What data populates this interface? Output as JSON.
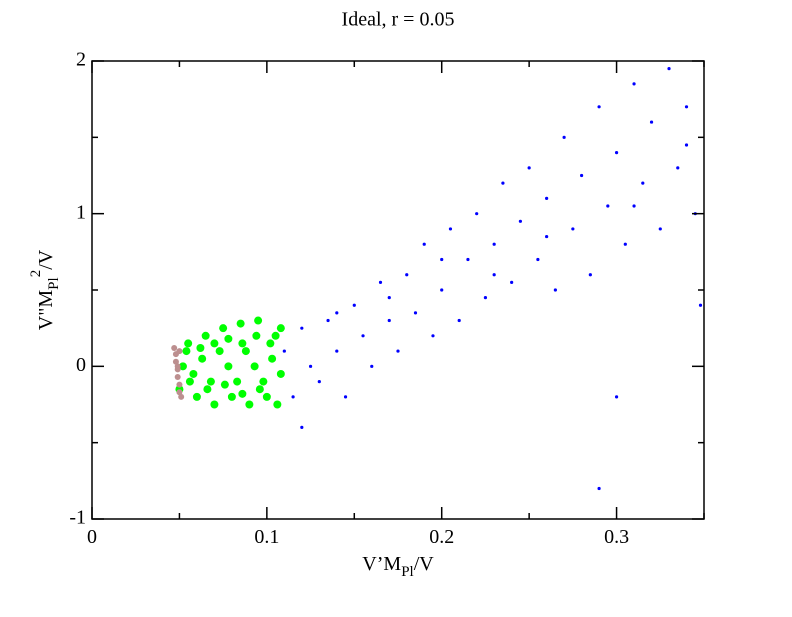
{
  "chart_data": {
    "type": "scatter",
    "title": "Ideal, r = 0.05",
    "xlabel": [
      "V’M",
      "Pl",
      "/V"
    ],
    "ylabel": [
      "V\"M",
      "Pl",
      "2",
      "/V"
    ],
    "xlim": [
      0,
      0.35
    ],
    "ylim": [
      -1,
      2
    ],
    "xticks": [
      0,
      0.1,
      0.2,
      0.3
    ],
    "yticks": [
      -1,
      0,
      1,
      2
    ],
    "xminorticks": [
      0.05,
      0.15,
      0.25,
      0.35
    ],
    "yminorticks": [
      -0.5,
      0.5,
      1.5
    ],
    "series": [
      {
        "color": "#0000ff",
        "size": 1.6,
        "x": [
          0.11,
          0.115,
          0.12,
          0.125,
          0.13,
          0.135,
          0.14,
          0.145,
          0.15,
          0.155,
          0.16,
          0.165,
          0.17,
          0.175,
          0.18,
          0.185,
          0.19,
          0.195,
          0.2,
          0.205,
          0.21,
          0.215,
          0.22,
          0.225,
          0.23,
          0.235,
          0.24,
          0.245,
          0.25,
          0.255,
          0.26,
          0.265,
          0.27,
          0.275,
          0.28,
          0.285,
          0.29,
          0.295,
          0.3,
          0.305,
          0.31,
          0.315,
          0.32,
          0.325,
          0.33,
          0.335,
          0.34,
          0.345,
          0.348,
          0.3,
          0.29,
          0.12,
          0.14,
          0.17,
          0.2,
          0.23,
          0.26,
          0.31,
          0.34,
          0.105
        ],
        "values": [
          0.1,
          -0.2,
          0.25,
          0.0,
          -0.1,
          0.3,
          0.1,
          -0.2,
          0.4,
          0.2,
          0.0,
          0.55,
          0.3,
          0.1,
          0.6,
          0.35,
          0.8,
          0.2,
          0.5,
          0.9,
          0.3,
          0.7,
          1.0,
          0.45,
          0.8,
          1.2,
          0.55,
          0.95,
          1.3,
          0.7,
          1.1,
          0.5,
          1.5,
          0.9,
          1.25,
          0.6,
          1.7,
          1.05,
          1.4,
          0.8,
          1.85,
          1.2,
          1.6,
          0.9,
          1.95,
          1.3,
          1.7,
          1.0,
          0.4,
          -0.2,
          -0.8,
          -0.4,
          0.35,
          0.45,
          0.7,
          0.6,
          0.85,
          1.05,
          1.45,
          0.2
        ]
      },
      {
        "color": "#00ff00",
        "size": 4,
        "x": [
          0.05,
          0.055,
          0.06,
          0.065,
          0.07,
          0.075,
          0.08,
          0.085,
          0.09,
          0.095,
          0.1,
          0.105,
          0.052,
          0.058,
          0.063,
          0.068,
          0.073,
          0.078,
          0.083,
          0.088,
          0.093,
          0.098,
          0.103,
          0.108,
          0.054,
          0.062,
          0.07,
          0.078,
          0.086,
          0.094,
          0.102,
          0.108,
          0.056,
          0.066,
          0.076,
          0.086,
          0.096,
          0.106
        ],
        "values": [
          -0.15,
          0.15,
          -0.2,
          0.2,
          -0.25,
          0.25,
          -0.2,
          0.28,
          -0.25,
          0.3,
          -0.2,
          0.2,
          0.0,
          -0.05,
          0.05,
          -0.1,
          0.1,
          0.0,
          -0.1,
          0.1,
          0.0,
          -0.1,
          0.05,
          -0.05,
          0.1,
          0.12,
          0.15,
          0.18,
          0.15,
          0.2,
          0.15,
          0.25,
          -0.1,
          -0.15,
          -0.12,
          -0.18,
          -0.15,
          -0.25
        ]
      },
      {
        "color": "#bc8f8f",
        "size": 3,
        "x": [
          0.047,
          0.048,
          0.048,
          0.049,
          0.049,
          0.05,
          0.05,
          0.051,
          0.05,
          0.049
        ],
        "values": [
          0.12,
          0.08,
          0.03,
          -0.02,
          -0.07,
          -0.12,
          -0.17,
          -0.2,
          0.1,
          0.0
        ]
      }
    ]
  }
}
